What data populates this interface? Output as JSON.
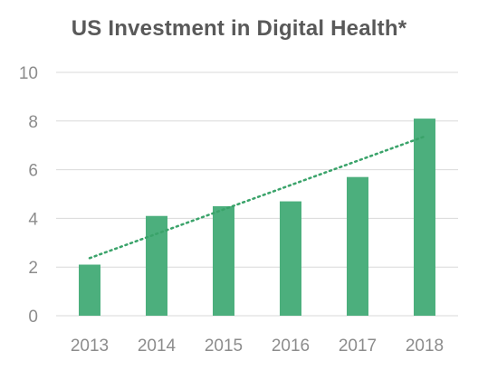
{
  "chart_data": {
    "type": "bar",
    "title": "US Investment in Digital Health*",
    "xlabel": "",
    "ylabel": "",
    "categories": [
      "2013",
      "2014",
      "2015",
      "2016",
      "2017",
      "2018"
    ],
    "values": [
      2.1,
      4.1,
      4.5,
      4.7,
      5.7,
      8.1
    ],
    "ylim": [
      0,
      10
    ],
    "yticks": [
      "0",
      "2",
      "4",
      "6",
      "8",
      "10"
    ],
    "grid": true,
    "legend": "none",
    "trendline": "linear",
    "colors": {
      "bar": "#4caf7d",
      "trendline": "#3aa36a",
      "grid": "#d9d9d9",
      "text": "#595959",
      "tick": "#8c8c8c"
    }
  }
}
